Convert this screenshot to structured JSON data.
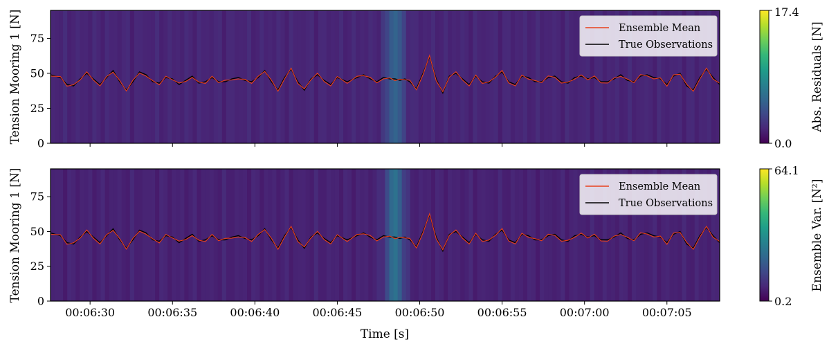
{
  "colors": {
    "mean": "#e8401c",
    "truth": "#000000",
    "colormap": [
      "#440154",
      "#482878",
      "#3e4989",
      "#31688e",
      "#26828e",
      "#1f9e89",
      "#35b779",
      "#6ece58",
      "#b5de2b",
      "#fde725"
    ]
  },
  "chart_data": [
    {
      "type": "line",
      "panel": "top",
      "ylabel": "Tension Mooring 1 [N]",
      "xlabel": "",
      "xlim": [
        "00:06:27.6",
        "00:07:08.2"
      ],
      "ylim": [
        0,
        95
      ],
      "yticks": [
        0,
        25,
        50,
        75
      ],
      "xticks": [
        "00:06:30",
        "00:06:35",
        "00:06:40",
        "00:06:45",
        "00:06:50",
        "00:06:55",
        "00:07:00",
        "00:07:05"
      ],
      "legend_placement": "top-right",
      "series": [
        {
          "name": "Ensemble Mean",
          "color": "#e8401c"
        },
        {
          "name": "True Observations",
          "color": "#000000"
        }
      ],
      "colorbar": {
        "label": "Abs. Residuals [N]",
        "min": 0.0,
        "max": 17.4,
        "min_label": "0.0",
        "max_label": "17.4"
      },
      "background_level": 0.08,
      "peak_level": 0.22
    },
    {
      "type": "line",
      "panel": "bottom",
      "ylabel": "Tension Mooring 1 [N]",
      "xlabel": "Time [s]",
      "xlim": [
        "00:06:27.6",
        "00:07:08.2"
      ],
      "ylim": [
        0,
        95
      ],
      "yticks": [
        0,
        25,
        50,
        75
      ],
      "xticks": [
        "00:06:30",
        "00:06:35",
        "00:06:40",
        "00:06:45",
        "00:06:50",
        "00:06:55",
        "00:07:00",
        "00:07:05"
      ],
      "legend_placement": "top-right",
      "series": [
        {
          "name": "Ensemble Mean",
          "color": "#e8401c"
        },
        {
          "name": "True Observations",
          "color": "#000000"
        }
      ],
      "colorbar": {
        "label": "Ensemble Var. [N²]",
        "min": 0.2,
        "max": 64.1,
        "min_label": "0.2",
        "max_label": "64.1"
      },
      "background_level": 0.07,
      "peak_level": 0.28
    }
  ],
  "signal": {
    "x_seconds": [
      387.6,
      388.2,
      388.6,
      389.0,
      389.4,
      389.8,
      390.2,
      390.6,
      391.0,
      391.4,
      391.8,
      392.2,
      392.6,
      393.0,
      393.4,
      393.8,
      394.2,
      394.6,
      395.0,
      395.4,
      395.8,
      396.2,
      396.6,
      397.0,
      397.4,
      397.8,
      398.2,
      398.6,
      399.0,
      399.4,
      399.8,
      400.2,
      400.6,
      401.0,
      401.4,
      401.8,
      402.2,
      402.6,
      403.0,
      403.4,
      403.8,
      404.2,
      404.6,
      405.0,
      405.6,
      406.2,
      406.6,
      407.0,
      407.4,
      407.8,
      408.2,
      408.5,
      408.8,
      409.1,
      409.4,
      409.8,
      410.2,
      410.6,
      411.0,
      411.4,
      411.8,
      412.2,
      412.6,
      413.0,
      413.4,
      413.8,
      414.2,
      414.6,
      415.0,
      415.4,
      415.8,
      416.2,
      416.6,
      417.0,
      417.4,
      417.8,
      418.2,
      418.6,
      419.0,
      419.4,
      419.8,
      420.2,
      420.6,
      421.0,
      421.4,
      421.8,
      422.2,
      422.6,
      423.0,
      423.4,
      423.8,
      424.2,
      424.6,
      425.0,
      425.4,
      425.8,
      426.2,
      426.6,
      427.0,
      427.4,
      427.8,
      428.2
    ],
    "truth": [
      49,
      47,
      42,
      41,
      46,
      50,
      46,
      42,
      47,
      52,
      44,
      38,
      44,
      51,
      49,
      44,
      43,
      47,
      46,
      42,
      45,
      48,
      43,
      44,
      47,
      44,
      44,
      46,
      47,
      45,
      44,
      47,
      52,
      44,
      38,
      47,
      53,
      44,
      38,
      46,
      49,
      45,
      42,
      47,
      44,
      47,
      49,
      46,
      44,
      47,
      46,
      46,
      45,
      46,
      44,
      39,
      50,
      62,
      46,
      36,
      48,
      50,
      46,
      42,
      48,
      44,
      43,
      48,
      51,
      44,
      42,
      48,
      47,
      44,
      44,
      47,
      48,
      44,
      43,
      47,
      48,
      46,
      47,
      44,
      44,
      46,
      49,
      45,
      44,
      48,
      49,
      47,
      46,
      42,
      48,
      50,
      41,
      38,
      47,
      53,
      47,
      42
    ]
  }
}
